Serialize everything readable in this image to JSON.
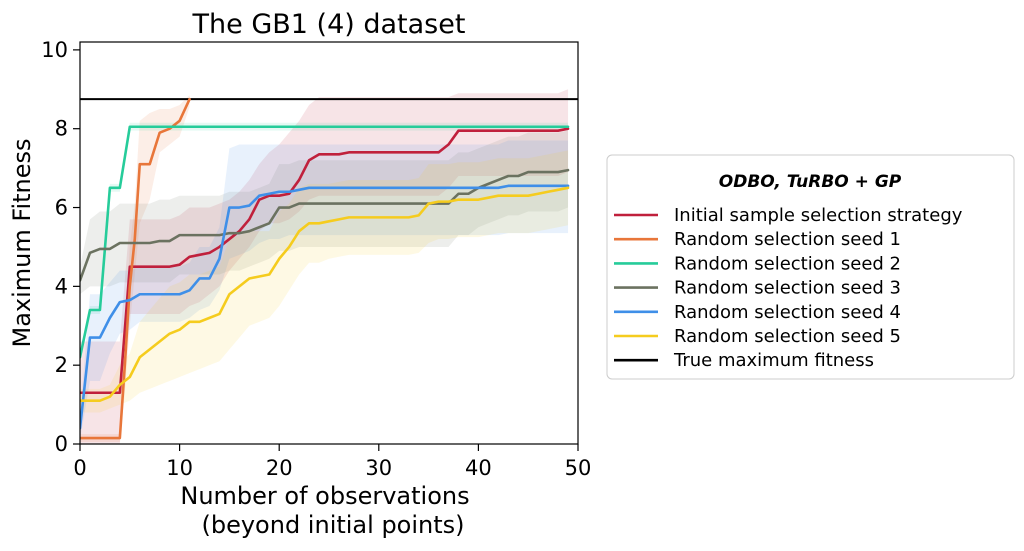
{
  "chart_data": {
    "type": "line",
    "title": "The GB1 (4) dataset",
    "xlabel": "Number of observations",
    "xlabel_line2": "(beyond initial points)",
    "ylabel": "Maximum Fitness",
    "xlim": [
      0,
      50
    ],
    "ylim": [
      0,
      10.2
    ],
    "xticks": [
      0,
      10,
      20,
      30,
      40,
      50
    ],
    "yticks": [
      0,
      2,
      4,
      6,
      8,
      10
    ],
    "grid": false,
    "legend": {
      "placement": "outside-right",
      "title": "ODBO, TuRBO + GP"
    },
    "series": [
      {
        "name": "Initial sample selection strategy",
        "color": "#c0203c",
        "x": [
          0,
          1,
          2,
          3,
          4,
          5,
          6,
          7,
          8,
          9,
          10,
          11,
          12,
          13,
          14,
          15,
          16,
          17,
          18,
          19,
          20,
          21,
          22,
          23,
          24,
          25,
          26,
          27,
          28,
          29,
          30,
          31,
          32,
          33,
          34,
          35,
          36,
          37,
          38,
          39,
          40,
          41,
          42,
          43,
          44,
          45,
          46,
          47,
          48,
          49
        ],
        "y": [
          1.3,
          1.3,
          1.3,
          1.3,
          1.3,
          4.5,
          4.5,
          4.5,
          4.5,
          4.5,
          4.55,
          4.75,
          4.8,
          4.85,
          5.0,
          5.2,
          5.4,
          5.7,
          6.2,
          6.3,
          6.3,
          6.35,
          6.7,
          7.2,
          7.35,
          7.35,
          7.35,
          7.4,
          7.4,
          7.4,
          7.4,
          7.4,
          7.4,
          7.4,
          7.4,
          7.4,
          7.4,
          7.6,
          7.95,
          7.95,
          7.95,
          7.95,
          7.95,
          7.95,
          7.95,
          7.95,
          7.95,
          7.95,
          7.95,
          8.0
        ],
        "band_lower": [
          0,
          0,
          0,
          0,
          0,
          3.3,
          3.3,
          3.3,
          3.3,
          3.3,
          3.3,
          3.5,
          3.6,
          3.8,
          4.0,
          4.4,
          4.7,
          5.0,
          5.4,
          5.6,
          5.6,
          5.7,
          5.9,
          6.2,
          6.3,
          6.3,
          6.3,
          6.3,
          6.3,
          6.3,
          6.3,
          6.3,
          6.3,
          6.3,
          6.3,
          6.3,
          6.3,
          6.5,
          6.8,
          6.8,
          6.8,
          6.8,
          6.8,
          6.8,
          6.8,
          6.8,
          6.8,
          6.8,
          6.8,
          6.9
        ],
        "band_upper": [
          2.6,
          2.6,
          2.6,
          2.6,
          2.6,
          5.7,
          5.7,
          5.7,
          5.7,
          5.7,
          5.8,
          6.0,
          6.0,
          6.0,
          6.1,
          6.2,
          6.4,
          6.7,
          7.1,
          7.4,
          7.6,
          7.9,
          8.2,
          8.6,
          8.8,
          8.8,
          8.8,
          8.8,
          8.8,
          8.8,
          8.8,
          8.8,
          8.8,
          8.8,
          8.8,
          8.8,
          8.8,
          8.8,
          8.9,
          8.9,
          8.9,
          8.9,
          8.9,
          8.9,
          8.9,
          8.9,
          8.9,
          8.9,
          8.9,
          9.0
        ]
      },
      {
        "name": "Random selection seed 1",
        "color": "#e8763a",
        "x": [
          0,
          1,
          2,
          3,
          4,
          4.5,
          5,
          5.5,
          6,
          7,
          8,
          9,
          10,
          11
        ],
        "y": [
          0.15,
          0.15,
          0.15,
          0.15,
          0.15,
          2.0,
          4.0,
          5.2,
          7.1,
          7.1,
          7.9,
          8.0,
          8.2,
          8.75
        ],
        "band_lower": [
          0.05,
          0.05,
          0.05,
          0.05,
          0.05,
          1.3,
          3.0,
          4.3,
          5.6,
          6.2,
          7.4,
          7.6,
          7.8,
          8.55
        ],
        "band_upper": [
          0.25,
          0.25,
          0.25,
          0.25,
          0.25,
          2.7,
          5.0,
          6.1,
          8.2,
          8.4,
          8.5,
          8.5,
          8.6,
          8.85
        ]
      },
      {
        "name": "Random selection seed 2",
        "color": "#26cc9a",
        "x": [
          0,
          1,
          2,
          3,
          4,
          5,
          49
        ],
        "y": [
          2.2,
          3.4,
          3.4,
          6.5,
          6.5,
          8.05,
          8.05
        ],
        "band_lower": [
          2.1,
          3.3,
          3.3,
          6.4,
          6.4,
          7.95,
          7.95
        ],
        "band_upper": [
          2.3,
          3.5,
          3.5,
          6.6,
          6.6,
          8.15,
          8.15
        ]
      },
      {
        "name": "Random selection seed 3",
        "color": "#6b7260",
        "x": [
          0,
          1,
          2,
          3,
          4,
          5,
          6,
          7,
          8,
          9,
          10,
          11,
          12,
          13,
          14,
          15,
          16,
          17,
          18,
          19,
          20,
          21,
          22,
          23,
          24,
          25,
          26,
          27,
          28,
          29,
          30,
          31,
          32,
          33,
          34,
          35,
          36,
          37,
          38,
          39,
          40,
          41,
          42,
          43,
          44,
          45,
          46,
          47,
          48,
          49
        ],
        "y": [
          4.15,
          4.85,
          4.95,
          4.95,
          5.1,
          5.1,
          5.1,
          5.1,
          5.15,
          5.15,
          5.3,
          5.3,
          5.3,
          5.3,
          5.3,
          5.35,
          5.35,
          5.4,
          5.5,
          5.6,
          6.0,
          6.0,
          6.1,
          6.1,
          6.1,
          6.1,
          6.1,
          6.1,
          6.1,
          6.1,
          6.1,
          6.1,
          6.1,
          6.1,
          6.1,
          6.1,
          6.1,
          6.1,
          6.35,
          6.35,
          6.5,
          6.6,
          6.7,
          6.8,
          6.8,
          6.9,
          6.9,
          6.9,
          6.9,
          6.95
        ],
        "band_lower": [
          3.8,
          4.0,
          4.0,
          4.0,
          4.1,
          4.1,
          4.1,
          4.1,
          4.1,
          4.1,
          4.3,
          4.3,
          4.3,
          4.3,
          4.3,
          4.4,
          4.4,
          4.5,
          4.6,
          4.7,
          4.9,
          4.9,
          5.0,
          5.0,
          5.0,
          5.0,
          5.0,
          5.0,
          5.0,
          5.0,
          5.0,
          5.0,
          5.0,
          5.0,
          5.0,
          5.0,
          5.0,
          5.0,
          5.3,
          5.3,
          5.5,
          5.6,
          5.7,
          5.8,
          5.8,
          5.9,
          5.9,
          5.9,
          5.9,
          6.0
        ],
        "band_upper": [
          4.5,
          5.7,
          5.9,
          5.9,
          6.1,
          6.1,
          6.1,
          6.1,
          6.2,
          6.2,
          6.3,
          6.3,
          6.3,
          6.3,
          6.3,
          6.4,
          6.4,
          6.4,
          6.5,
          6.6,
          7.1,
          7.1,
          7.2,
          7.2,
          7.2,
          7.2,
          7.2,
          7.2,
          7.2,
          7.2,
          7.2,
          7.2,
          7.2,
          7.2,
          7.2,
          7.2,
          7.2,
          7.2,
          7.4,
          7.4,
          7.5,
          7.6,
          7.7,
          7.8,
          7.8,
          7.9,
          7.9,
          7.9,
          7.9,
          7.95
        ]
      },
      {
        "name": "Random selection seed 4",
        "color": "#3f8fe8",
        "x": [
          0,
          1,
          2,
          3,
          4,
          5,
          6,
          7,
          8,
          9,
          10,
          11,
          12,
          13,
          14,
          15,
          16,
          17,
          18,
          19,
          20,
          21,
          22,
          23,
          24,
          25,
          26,
          27,
          28,
          29,
          30,
          31,
          32,
          33,
          34,
          35,
          36,
          37,
          38,
          39,
          40,
          41,
          42,
          43,
          44,
          45,
          46,
          47,
          48,
          49
        ],
        "y": [
          0.4,
          2.7,
          2.7,
          3.2,
          3.6,
          3.65,
          3.8,
          3.8,
          3.8,
          3.8,
          3.8,
          3.9,
          4.2,
          4.2,
          4.7,
          6.0,
          6.0,
          6.05,
          6.3,
          6.35,
          6.4,
          6.4,
          6.45,
          6.5,
          6.5,
          6.5,
          6.5,
          6.5,
          6.5,
          6.5,
          6.5,
          6.5,
          6.5,
          6.5,
          6.5,
          6.5,
          6.5,
          6.5,
          6.5,
          6.5,
          6.5,
          6.5,
          6.5,
          6.55,
          6.55,
          6.55,
          6.55,
          6.55,
          6.55,
          6.55
        ],
        "band_lower": [
          0.1,
          1.6,
          1.6,
          2.3,
          2.8,
          2.9,
          3.1,
          3.1,
          3.1,
          3.1,
          3.1,
          3.2,
          3.4,
          3.5,
          3.9,
          4.7,
          4.8,
          4.9,
          5.1,
          5.2,
          5.2,
          5.3,
          5.3,
          5.3,
          5.3,
          5.3,
          5.3,
          5.3,
          5.3,
          5.3,
          5.3,
          5.3,
          5.3,
          5.3,
          5.3,
          5.3,
          5.3,
          5.3,
          5.3,
          5.3,
          5.3,
          5.3,
          5.3,
          5.35,
          5.35,
          5.35,
          5.35,
          5.35,
          5.35,
          5.35
        ],
        "band_upper": [
          0.7,
          3.8,
          3.8,
          4.1,
          4.4,
          4.4,
          4.5,
          4.5,
          4.5,
          4.5,
          4.5,
          4.6,
          5.0,
          5.0,
          5.5,
          7.5,
          7.6,
          7.6,
          7.6,
          7.6,
          7.6,
          7.6,
          7.6,
          7.6,
          7.6,
          7.6,
          7.6,
          7.6,
          7.6,
          7.6,
          7.6,
          7.6,
          7.6,
          7.6,
          7.6,
          7.6,
          7.6,
          7.6,
          7.6,
          7.6,
          7.6,
          7.6,
          7.6,
          7.7,
          7.7,
          7.7,
          7.7,
          7.7,
          7.7,
          7.7
        ]
      },
      {
        "name": "Random selection seed 5",
        "color": "#f5cc1e",
        "x": [
          0,
          1,
          2,
          3,
          4,
          5,
          6,
          7,
          8,
          9,
          10,
          11,
          12,
          13,
          14,
          15,
          16,
          17,
          18,
          19,
          20,
          21,
          22,
          23,
          24,
          25,
          26,
          27,
          28,
          29,
          30,
          31,
          32,
          33,
          34,
          35,
          36,
          37,
          38,
          39,
          40,
          41,
          42,
          43,
          44,
          45,
          46,
          47,
          48,
          49
        ],
        "y": [
          1.1,
          1.1,
          1.1,
          1.2,
          1.5,
          1.7,
          2.2,
          2.4,
          2.6,
          2.8,
          2.9,
          3.1,
          3.1,
          3.2,
          3.3,
          3.8,
          4.0,
          4.2,
          4.25,
          4.3,
          4.7,
          5.0,
          5.4,
          5.6,
          5.6,
          5.65,
          5.7,
          5.75,
          5.75,
          5.75,
          5.75,
          5.75,
          5.75,
          5.75,
          5.8,
          6.1,
          6.15,
          6.15,
          6.2,
          6.2,
          6.2,
          6.25,
          6.3,
          6.3,
          6.3,
          6.3,
          6.35,
          6.4,
          6.45,
          6.5
        ],
        "band_lower": [
          0.8,
          0.8,
          0.8,
          0.9,
          1.0,
          1.1,
          1.3,
          1.4,
          1.5,
          1.6,
          1.7,
          1.8,
          1.9,
          2.0,
          2.1,
          2.4,
          2.7,
          3.0,
          3.1,
          3.2,
          3.5,
          3.9,
          4.3,
          4.6,
          4.6,
          4.7,
          4.75,
          4.8,
          4.8,
          4.8,
          4.8,
          4.8,
          4.8,
          4.8,
          4.85,
          5.1,
          5.2,
          5.2,
          5.25,
          5.25,
          5.25,
          5.3,
          5.35,
          5.35,
          5.35,
          5.35,
          5.4,
          5.45,
          5.5,
          5.55
        ],
        "band_upper": [
          1.4,
          1.4,
          1.4,
          1.5,
          2.0,
          2.3,
          3.1,
          3.4,
          3.7,
          4.0,
          4.1,
          4.3,
          4.3,
          4.4,
          4.5,
          5.2,
          5.3,
          5.4,
          5.4,
          5.4,
          5.9,
          6.1,
          6.5,
          6.6,
          6.6,
          6.6,
          6.65,
          6.7,
          6.7,
          6.7,
          6.7,
          6.7,
          6.7,
          6.7,
          6.75,
          7.1,
          7.1,
          7.1,
          7.15,
          7.15,
          7.15,
          7.2,
          7.25,
          7.25,
          7.25,
          7.25,
          7.3,
          7.35,
          7.4,
          7.45
        ]
      },
      {
        "name": "True maximum fitness",
        "color": "#000000",
        "x": [
          0,
          50
        ],
        "y": [
          8.75,
          8.75
        ]
      }
    ]
  }
}
